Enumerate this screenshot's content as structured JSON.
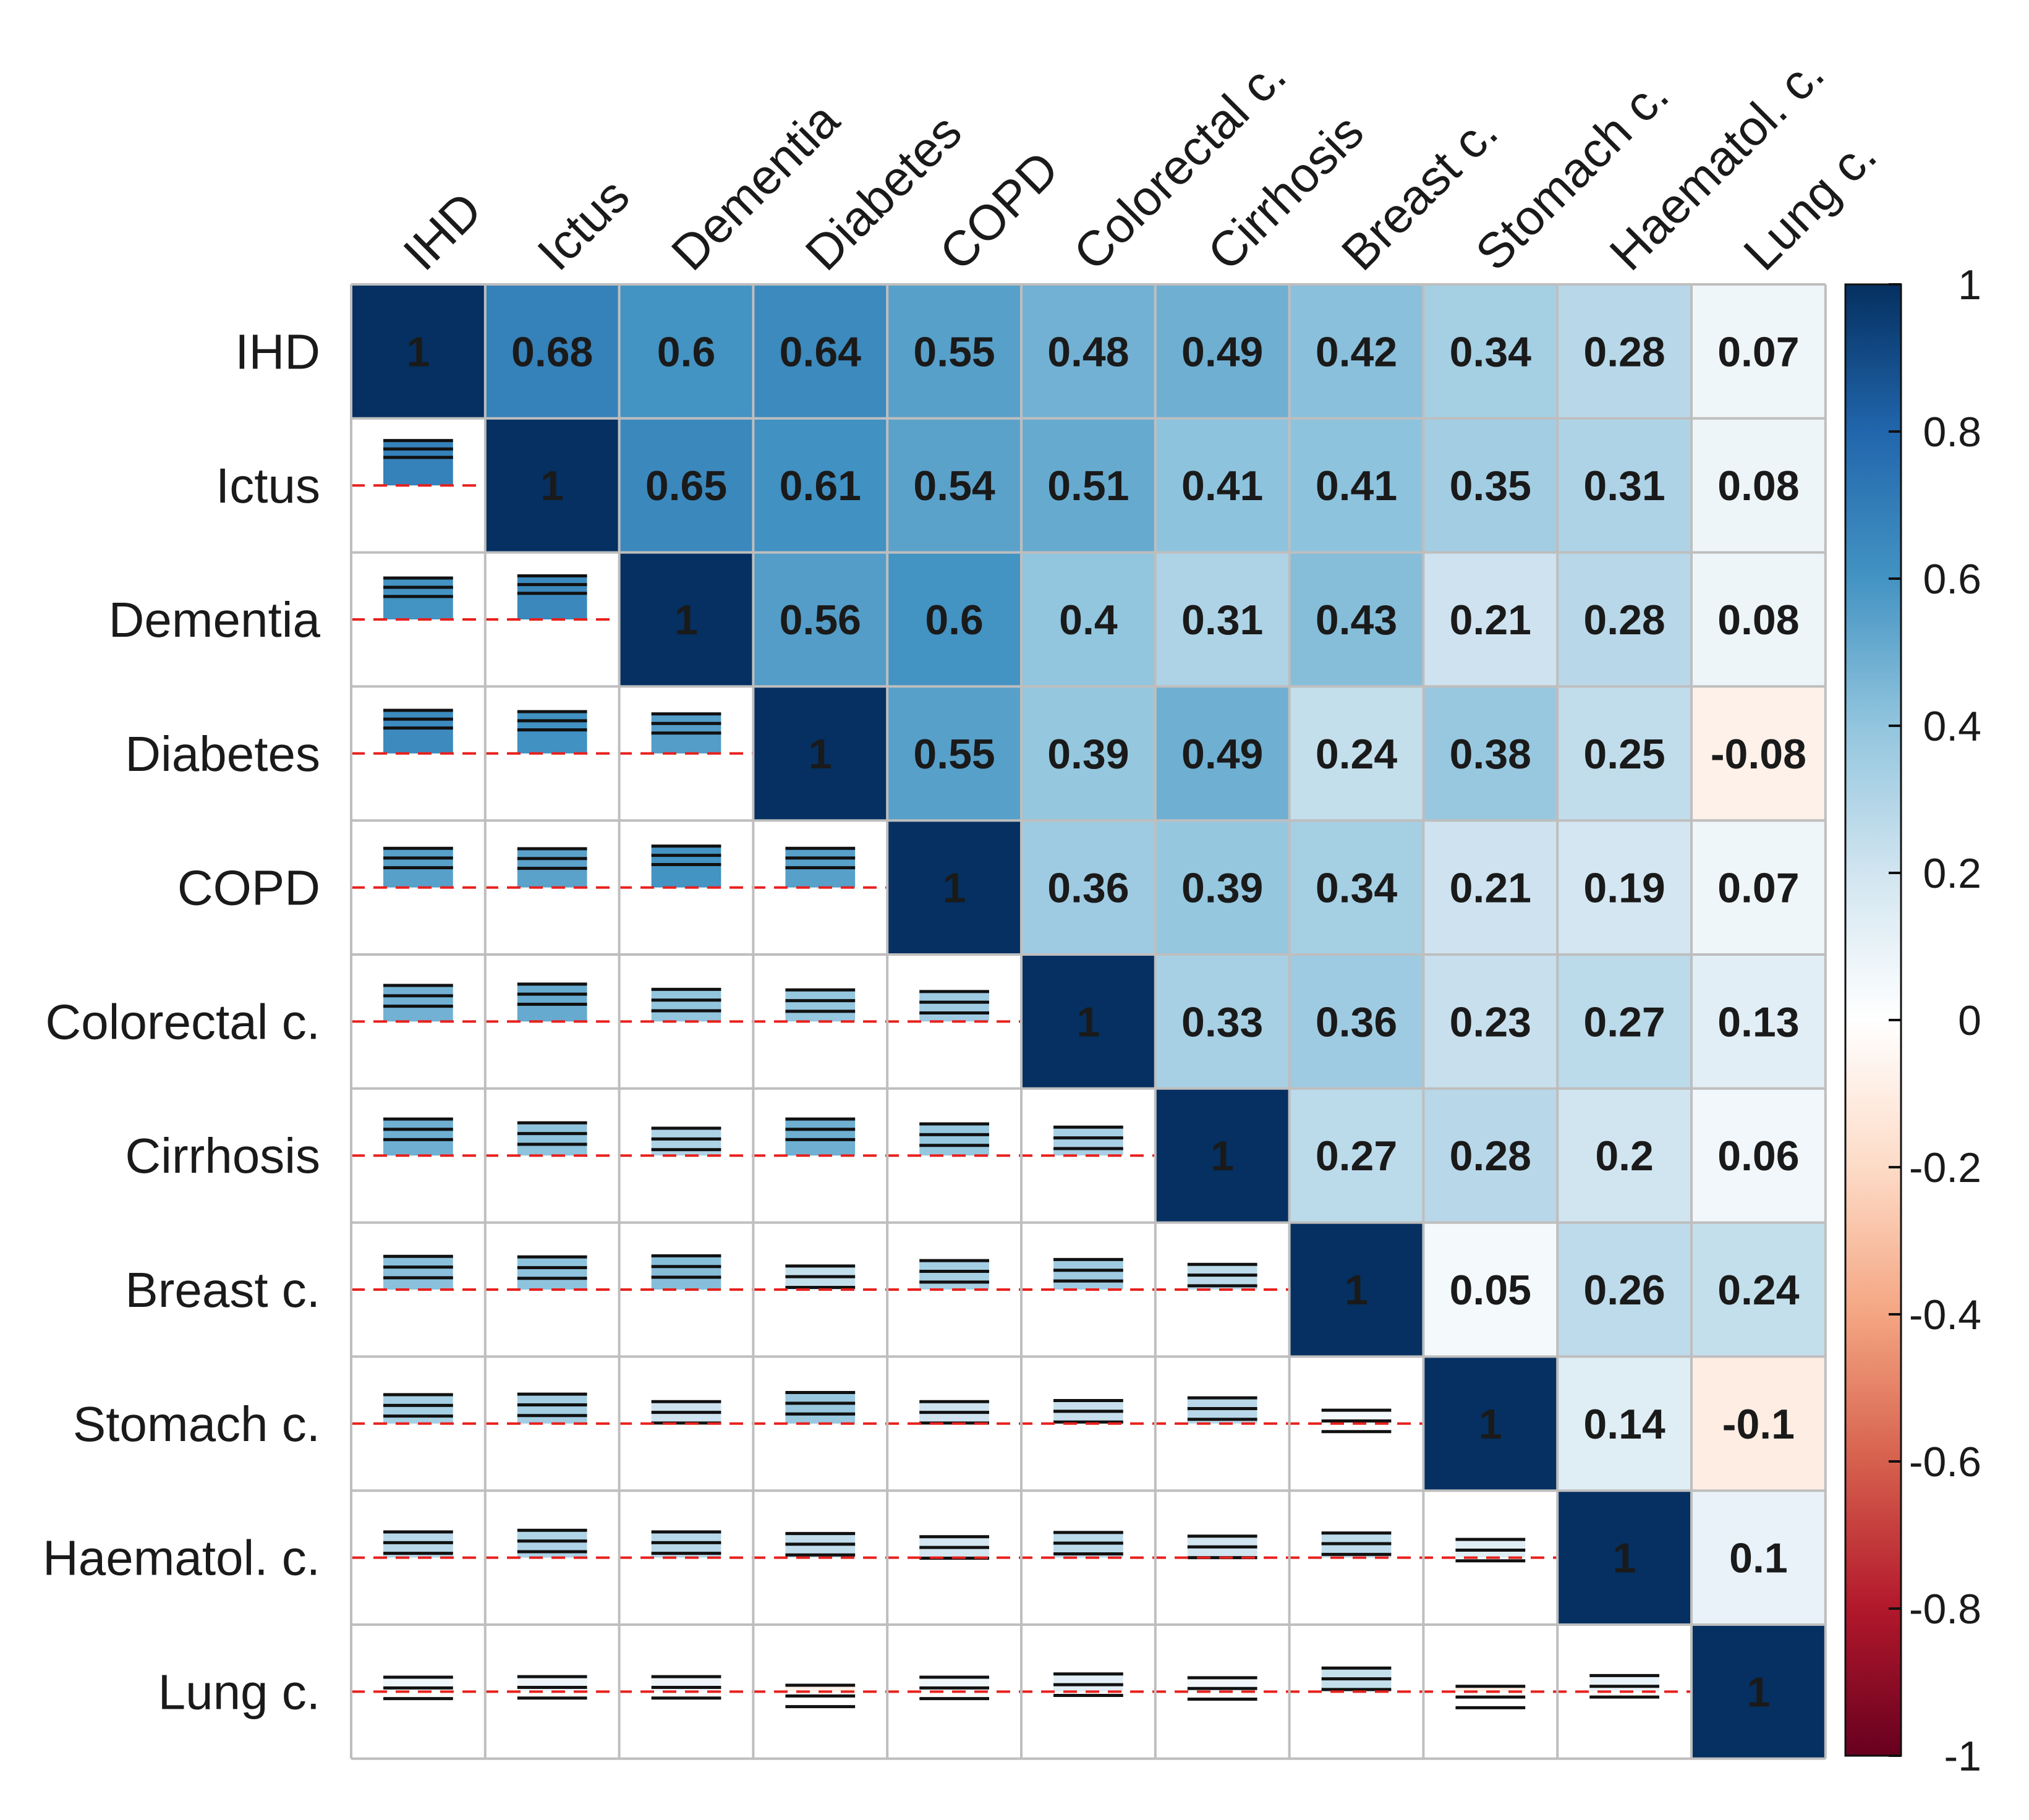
{
  "chart_data": {
    "type": "heatmap",
    "variables": [
      "IHD",
      "Ictus",
      "Dementia",
      "Diabetes",
      "COPD",
      "Colorectal c.",
      "Cirrhosis",
      "Breast c.",
      "Stomach c.",
      "Haematol. c.",
      "Lung c."
    ],
    "matrix": [
      [
        1,
        0.68,
        0.6,
        0.64,
        0.55,
        0.48,
        0.49,
        0.42,
        0.34,
        0.28,
        0.07
      ],
      [
        0.68,
        1,
        0.65,
        0.61,
        0.54,
        0.51,
        0.41,
        0.41,
        0.35,
        0.31,
        0.08
      ],
      [
        0.6,
        0.65,
        1,
        0.56,
        0.6,
        0.4,
        0.31,
        0.43,
        0.21,
        0.28,
        0.08
      ],
      [
        0.64,
        0.61,
        0.56,
        1,
        0.55,
        0.39,
        0.49,
        0.24,
        0.38,
        0.25,
        -0.08
      ],
      [
        0.55,
        0.54,
        0.6,
        0.55,
        1,
        0.36,
        0.39,
        0.34,
        0.21,
        0.19,
        0.07
      ],
      [
        0.48,
        0.51,
        0.4,
        0.39,
        0.36,
        1,
        0.33,
        0.36,
        0.23,
        0.27,
        0.13
      ],
      [
        0.49,
        0.41,
        0.31,
        0.49,
        0.39,
        0.33,
        1,
        0.27,
        0.28,
        0.2,
        0.06
      ],
      [
        0.42,
        0.41,
        0.43,
        0.24,
        0.34,
        0.36,
        0.27,
        1,
        0.05,
        0.26,
        0.24
      ],
      [
        0.34,
        0.35,
        0.21,
        0.38,
        0.21,
        0.23,
        0.28,
        0.05,
        1,
        0.14,
        -0.1
      ],
      [
        0.28,
        0.31,
        0.28,
        0.25,
        0.19,
        0.27,
        0.2,
        0.26,
        0.14,
        1,
        0.1
      ],
      [
        0.07,
        0.08,
        0.08,
        -0.08,
        0.07,
        0.13,
        0.06,
        0.24,
        -0.1,
        0.1,
        1
      ]
    ],
    "value_labels": [
      [
        "1",
        "0.68",
        "0.6",
        "0.64",
        "0.55",
        "0.48",
        "0.49",
        "0.42",
        "0.34",
        "0.28",
        "0.07"
      ],
      [
        "",
        "1",
        "0.65",
        "0.61",
        "0.54",
        "0.51",
        "0.41",
        "0.41",
        "0.35",
        "0.31",
        "0.08"
      ],
      [
        "",
        "",
        "1",
        "0.56",
        "0.6",
        "0.4",
        "0.31",
        "0.43",
        "0.21",
        "0.28",
        "0.08"
      ],
      [
        "",
        "",
        "",
        "1",
        "0.55",
        "0.39",
        "0.49",
        "0.24",
        "0.38",
        "0.25",
        "-0.08"
      ],
      [
        "",
        "",
        "",
        "",
        "1",
        "0.36",
        "0.39",
        "0.34",
        "0.21",
        "0.19",
        "0.07"
      ],
      [
        "",
        "",
        "",
        "",
        "",
        "1",
        "0.33",
        "0.36",
        "0.23",
        "0.27",
        "0.13"
      ],
      [
        "",
        "",
        "",
        "",
        "",
        "",
        "1",
        "0.27",
        "0.28",
        "0.2",
        "0.06"
      ],
      [
        "",
        "",
        "",
        "",
        "",
        "",
        "",
        "1",
        "0.05",
        "0.26",
        "0.24"
      ],
      [
        "",
        "",
        "",
        "",
        "",
        "",
        "",
        "",
        "1",
        "0.14",
        "-0.1"
      ],
      [
        "",
        "",
        "",
        "",
        "",
        "",
        "",
        "",
        "",
        "1",
        "0.1"
      ],
      [
        "",
        "",
        "",
        "",
        "",
        "",
        "",
        "",
        "",
        "",
        "1"
      ]
    ],
    "upper_triangle": "colored cells with value labels",
    "lower_triangle": "confidence interval glyphs (lower bound, estimate, upper bound) with dashed red zero reference line",
    "colorbar": {
      "range": [
        -1,
        1
      ],
      "ticks": [
        "1",
        "0.8",
        "0.6",
        "0.4",
        "0.2",
        "0",
        "-0.2",
        "-0.4",
        "-0.6",
        "-0.8",
        "-1"
      ],
      "palette": [
        "#67001F",
        "#B2182B",
        "#D6604D",
        "#F4A582",
        "#FDDBC7",
        "#FFFFFF",
        "#D1E5F0",
        "#92C5DE",
        "#4393C3",
        "#2166AC",
        "#053061"
      ]
    },
    "grid": true,
    "legend_placement": "right",
    "zero_line_color": "#E8201C",
    "grid_color": "#BEBEBE"
  }
}
